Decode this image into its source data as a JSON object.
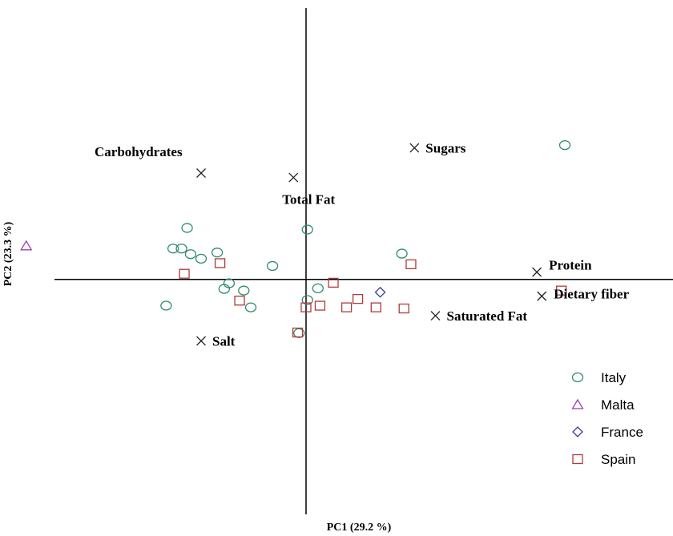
{
  "chart_data": {
    "type": "scatter",
    "title": "",
    "xlabel": "PC1 (29.2 %)",
    "ylabel": "PC2 (23.3 %)",
    "xlim": [
      -4.1,
      5.2
    ],
    "ylim": [
      -4.2,
      4.85
    ],
    "grid": false,
    "legend_position": "bottom-right",
    "series": [
      {
        "name": "Italy",
        "marker": "circle",
        "color": "#2e8b6e",
        "points": [
          {
            "x": 3.7,
            "y": 2.4
          },
          {
            "x": -1.7,
            "y": 0.92
          },
          {
            "x": -1.9,
            "y": 0.55
          },
          {
            "x": -1.78,
            "y": 0.55
          },
          {
            "x": -1.65,
            "y": 0.45
          },
          {
            "x": -1.5,
            "y": 0.37
          },
          {
            "x": -1.27,
            "y": 0.48
          },
          {
            "x": -0.48,
            "y": 0.24
          },
          {
            "x": 0.02,
            "y": 0.89
          },
          {
            "x": 1.37,
            "y": 0.46
          },
          {
            "x": -1.17,
            "y": -0.17
          },
          {
            "x": -1.1,
            "y": -0.07
          },
          {
            "x": -0.89,
            "y": -0.2
          },
          {
            "x": -2.0,
            "y": -0.47
          },
          {
            "x": -0.79,
            "y": -0.5
          },
          {
            "x": 0.17,
            "y": -0.16
          },
          {
            "x": 0.02,
            "y": -0.37
          },
          {
            "x": -0.1,
            "y": -0.96
          }
        ]
      },
      {
        "name": "Malta",
        "marker": "triangle",
        "color": "#9b3fb5",
        "points": [
          {
            "x": -4.0,
            "y": 0.6
          }
        ]
      },
      {
        "name": "France",
        "marker": "diamond",
        "color": "#3c3c9e",
        "points": [
          {
            "x": 1.06,
            "y": -0.23
          }
        ]
      },
      {
        "name": "Spain",
        "marker": "square",
        "color": "#b03a3a",
        "points": [
          {
            "x": -1.74,
            "y": 0.1
          },
          {
            "x": -1.23,
            "y": 0.29
          },
          {
            "x": -0.95,
            "y": -0.38
          },
          {
            "x": 0.39,
            "y": -0.06
          },
          {
            "x": 0.74,
            "y": -0.35
          },
          {
            "x": 1.5,
            "y": 0.27
          },
          {
            "x": 0.58,
            "y": -0.5
          },
          {
            "x": 1.0,
            "y": -0.5
          },
          {
            "x": 1.4,
            "y": -0.52
          },
          {
            "x": 0.2,
            "y": -0.47
          },
          {
            "x": 0.0,
            "y": -0.5
          },
          {
            "x": 3.65,
            "y": -0.2
          },
          {
            "x": -0.12,
            "y": -0.95
          }
        ]
      }
    ],
    "loadings": [
      {
        "label": "Carbohydrates",
        "x": -1.5,
        "y": 1.9
      },
      {
        "label": "Sugars",
        "x": 1.55,
        "y": 2.35
      },
      {
        "label": "Total Fat",
        "x": -0.18,
        "y": 1.82
      },
      {
        "label": "Protein",
        "x": 3.3,
        "y": 0.13
      },
      {
        "label": "Dietary fiber",
        "x": 3.37,
        "y": -0.3
      },
      {
        "label": "Saturated Fat",
        "x": 1.85,
        "y": -0.65
      },
      {
        "label": "Salt",
        "x": -1.5,
        "y": -1.1
      }
    ]
  }
}
